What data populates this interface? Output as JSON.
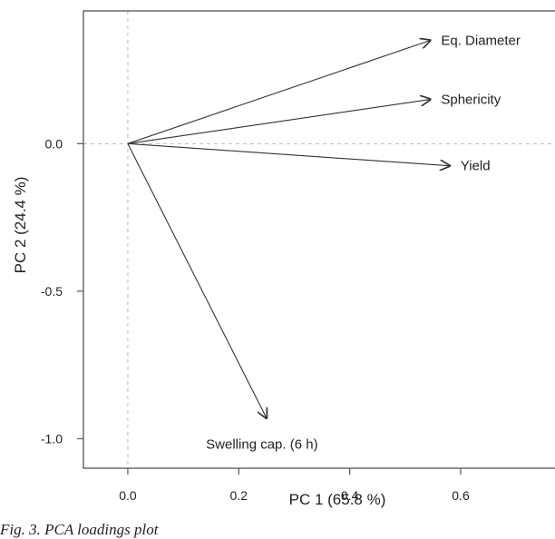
{
  "caption": "Fig. 3. PCA loadings plot",
  "chart_data": {
    "type": "biplot-loadings",
    "xlabel": "PC 1 (65.8 %)",
    "ylabel": "PC 2 (24.4 %)",
    "xlim": [
      -0.08,
      0.77
    ],
    "ylim": [
      -1.1,
      0.45
    ],
    "xticks": [
      0.0,
      0.2,
      0.4,
      0.6
    ],
    "yticks": [
      0.0,
      -0.5,
      -1.0
    ],
    "x_tick_labels": [
      "0.0",
      "0.2",
      "0.4",
      "0.6"
    ],
    "y_tick_labels": [
      "0.0",
      "-0.5",
      "-1.0"
    ],
    "reference_lines": {
      "x": 0,
      "y": 0,
      "style": "dashed"
    },
    "arrows": [
      {
        "name": "Eq. Diameter",
        "x": 0.545,
        "y": 0.35
      },
      {
        "name": "Sphericity",
        "x": 0.545,
        "y": 0.15
      },
      {
        "name": "Yield",
        "x": 0.58,
        "y": -0.075
      },
      {
        "name": "Swelling cap. (6 h)",
        "x": 0.25,
        "y": -0.93
      }
    ],
    "colors": {
      "axis": "#555555",
      "arrow": "#333333",
      "reference": "#bbbbbb",
      "text": "#222222"
    }
  }
}
